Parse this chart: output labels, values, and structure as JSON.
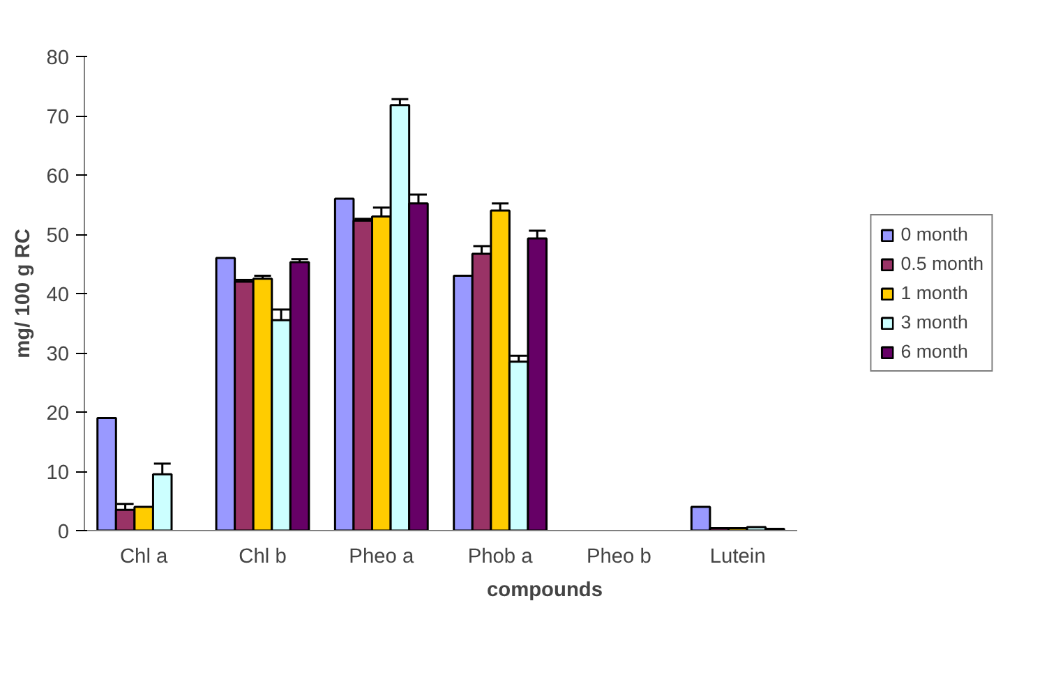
{
  "chart_data": {
    "type": "bar",
    "xlabel": "compounds",
    "ylabel": "mg/ 100 g RC",
    "categories": [
      "Chl a",
      "Chl b",
      "Pheo a",
      "Phob a",
      "Pheo b",
      "Lutein"
    ],
    "series": [
      {
        "name": "0 month",
        "color": "#9999ff",
        "values": [
          19,
          46,
          56,
          43,
          0,
          4
        ]
      },
      {
        "name": "0.5 month",
        "color": "#993366",
        "values": [
          3.5,
          42,
          52.3,
          46.7,
          0,
          0.4
        ],
        "errors": [
          1,
          0.3,
          0.3,
          1.3,
          null,
          null
        ]
      },
      {
        "name": "1 month",
        "color": "#ffcc00",
        "values": [
          4,
          42.5,
          53,
          54,
          0,
          0.4
        ],
        "errors": [
          null,
          0.5,
          1.5,
          1.2,
          null,
          null
        ]
      },
      {
        "name": "3 month",
        "color": "#ccffff",
        "values": [
          9.5,
          35.5,
          71.8,
          28.5,
          0,
          0.6
        ],
        "errors": [
          1.8,
          1.8,
          1,
          1,
          null,
          null
        ]
      },
      {
        "name": "6 month",
        "color": "#660066",
        "values": [
          0,
          45.3,
          55.2,
          49.3,
          0,
          0.3
        ],
        "errors": [
          null,
          0.5,
          1.5,
          1.3,
          null,
          null
        ]
      }
    ],
    "ylim": [
      0,
      80
    ],
    "yticks": [
      0,
      10,
      20,
      30,
      40,
      50,
      60,
      70,
      80
    ],
    "grid": false,
    "legend": "right"
  }
}
